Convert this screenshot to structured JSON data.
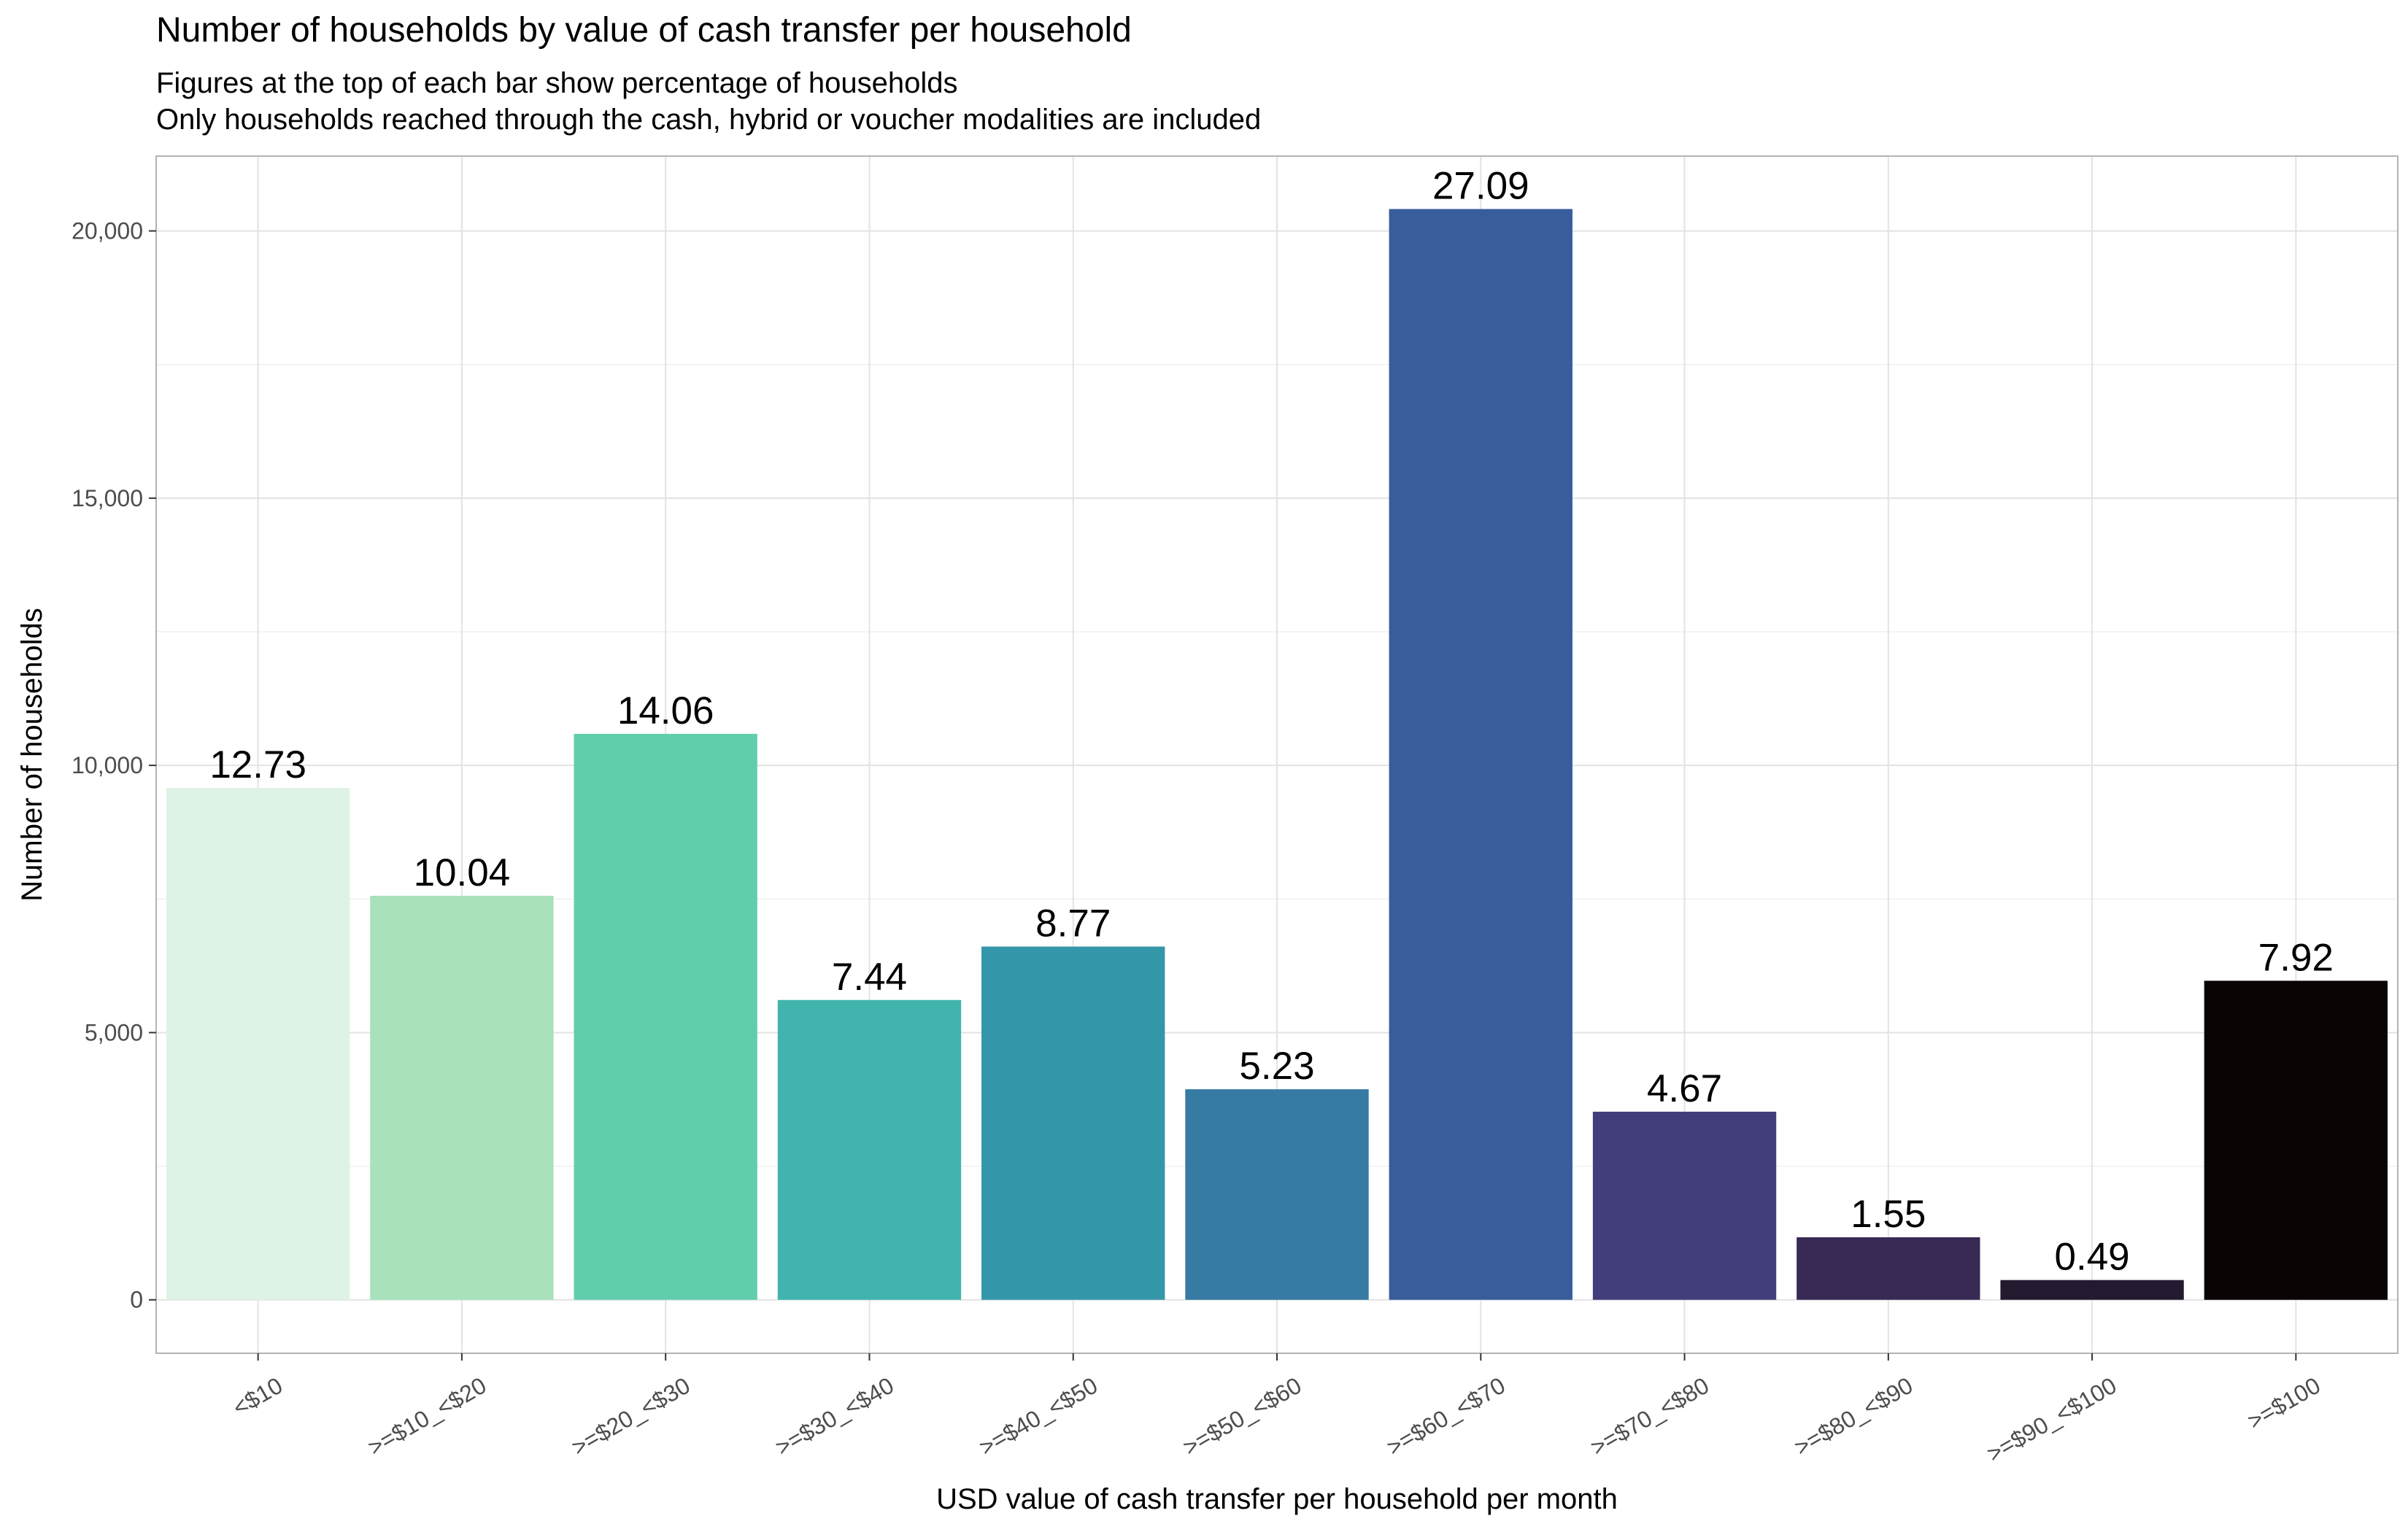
{
  "chart_data": {
    "type": "bar",
    "title": "Number of households by value of cash transfer per household",
    "subtitle_lines": [
      "Figures at the top of each bar show percentage of households",
      "Only households reached through the cash, hybrid or voucher modalities are included"
    ],
    "xlabel": "USD value of cash transfer per household per month",
    "ylabel": "Number of households",
    "categories": [
      "<$10",
      ">=$10_<$20",
      ">=$20_<$30",
      ">=$30_<$40",
      ">=$40_<$50",
      ">=$50_<$60",
      ">=$60_<$70",
      ">=$70_<$80",
      ">=$80_<$90",
      ">=$90_<$100",
      ">=$100"
    ],
    "values": [
      9580,
      7560,
      10590,
      5610,
      6610,
      3940,
      20410,
      3520,
      1170,
      370,
      5970
    ],
    "percent_labels": [
      "12.73",
      "10.04",
      "14.06",
      "7.44",
      "8.77",
      "5.23",
      "27.09",
      "4.67",
      "1.55",
      "0.49",
      "7.92"
    ],
    "colors": [
      "#def3e6",
      "#a8e1bc",
      "#60ceac",
      "#40b4ad",
      "#3497a9",
      "#357ba3",
      "#395c9b",
      "#423e7c",
      "#382a54",
      "#231a30",
      "#0b0405"
    ],
    "ylim": [
      -1000,
      21400
    ],
    "yticks": [
      0,
      5000,
      10000,
      15000,
      20000
    ],
    "ytick_labels": [
      "0",
      "5,000",
      "10,000",
      "15,000",
      "20,000"
    ],
    "grid": true,
    "legend": "none"
  }
}
